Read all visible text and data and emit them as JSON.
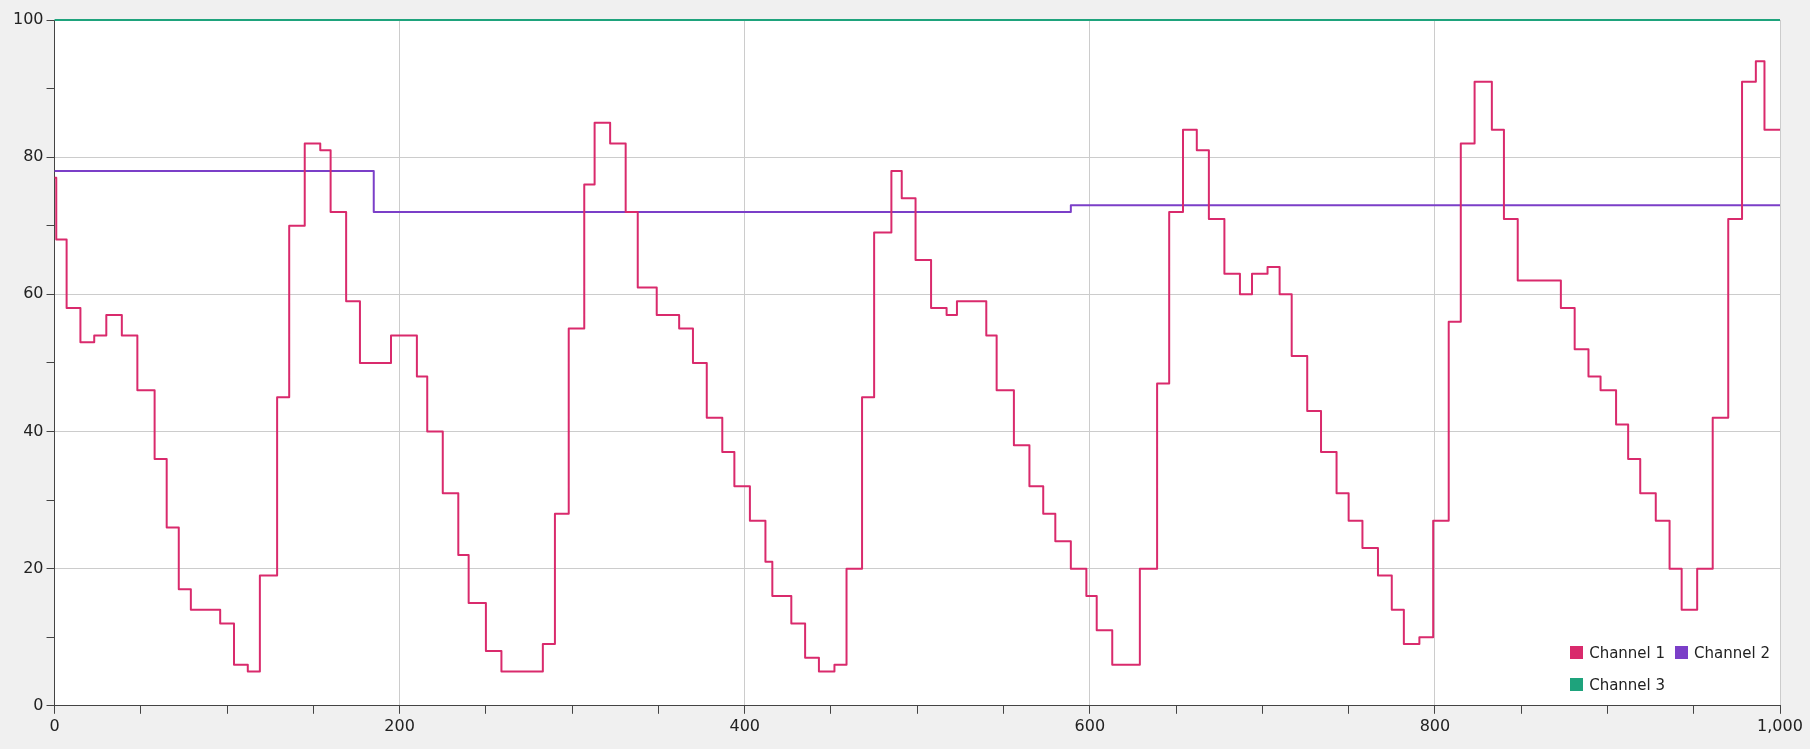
{
  "chart_data": {
    "type": "step",
    "xlim": [
      0,
      1000
    ],
    "xticks": [
      0,
      {
        "value": 50,
        "label": null
      },
      200,
      {
        "value": 100,
        "label": null
      },
      {
        "value": 150,
        "label": null
      },
      {
        "value": 250,
        "label": null
      },
      {
        "value": 300,
        "label": null
      },
      {
        "value": 350,
        "label": null
      },
      400,
      {
        "value": 450,
        "label": null
      },
      {
        "value": 500,
        "label": null
      },
      {
        "value": 550,
        "label": null
      },
      600,
      {
        "value": 650,
        "label": null
      },
      {
        "value": 700,
        "label": null
      },
      {
        "value": 750,
        "label": null
      },
      800,
      {
        "value": 850,
        "label": null
      },
      {
        "value": 900,
        "label": null
      },
      {
        "value": 950,
        "label": null
      },
      {
        "value": 1000,
        "label": "1,000"
      }
    ],
    "ylim": [
      0,
      100
    ],
    "yticks": [
      0,
      {
        "value": 10,
        "label": null
      },
      20,
      {
        "value": 30,
        "label": null
      },
      40,
      {
        "value": 50,
        "label": null
      },
      60,
      {
        "value": 70,
        "label": null
      },
      80,
      {
        "value": 90,
        "label": null
      },
      100
    ],
    "grid": true,
    "legend": "bottom right",
    "marker": "none",
    "series": [
      {
        "name": "Channel 1",
        "color": "#d92a6c",
        "x": [
          0,
          1,
          7,
          15,
          23,
          30,
          39,
          48,
          58,
          65,
          72,
          79,
          96,
          104,
          112,
          119,
          129,
          136,
          145,
          154,
          160,
          169,
          177,
          195,
          210,
          216,
          225,
          234,
          240,
          250,
          259,
          283,
          290,
          298,
          307,
          313,
          322,
          331,
          338,
          349,
          362,
          370,
          378,
          387,
          394,
          403,
          412,
          416,
          427,
          435,
          443,
          452,
          459,
          468,
          475,
          485,
          491,
          499,
          508,
          517,
          523,
          540,
          546,
          556,
          565,
          573,
          580,
          589,
          598,
          604,
          613,
          629,
          639,
          646,
          654,
          662,
          669,
          678,
          687,
          694,
          703,
          710,
          717,
          726,
          734,
          743,
          750,
          758,
          767,
          775,
          782,
          791,
          799,
          808,
          815,
          823,
          833,
          840,
          848,
          873,
          881,
          889,
          896,
          905,
          912,
          919,
          928,
          936,
          943,
          952,
          961,
          970,
          978,
          986,
          991,
          1000
        ],
        "values": [
          77,
          68,
          58,
          53,
          54,
          57,
          54,
          46,
          36,
          26,
          17,
          14,
          12,
          6,
          5,
          19,
          45,
          70,
          82,
          81,
          72,
          59,
          50,
          54,
          48,
          40,
          31,
          22,
          15,
          8,
          5,
          9,
          28,
          55,
          76,
          85,
          82,
          72,
          61,
          57,
          55,
          50,
          42,
          37,
          32,
          27,
          21,
          16,
          12,
          7,
          5,
          6,
          20,
          45,
          69,
          78,
          74,
          65,
          58,
          57,
          59,
          54,
          46,
          38,
          32,
          28,
          24,
          20,
          16,
          11,
          6,
          20,
          47,
          72,
          84,
          81,
          71,
          63,
          60,
          63,
          64,
          60,
          51,
          43,
          37,
          31,
          27,
          23,
          19,
          14,
          9,
          10,
          27,
          56,
          82,
          91,
          84,
          71,
          62,
          58,
          52,
          48,
          46,
          41,
          36,
          31,
          27,
          20,
          14,
          20,
          42,
          71,
          91,
          94,
          84,
          84
        ]
      },
      {
        "name": "Channel 2",
        "color": "#7b3fc8",
        "x": [
          0,
          185,
          589,
          1000
        ],
        "values": [
          78,
          72,
          73,
          73
        ]
      },
      {
        "name": "Channel 3",
        "color": "#1ea37c",
        "x": [
          0,
          1000
        ],
        "values": [
          100,
          100
        ]
      }
    ]
  }
}
